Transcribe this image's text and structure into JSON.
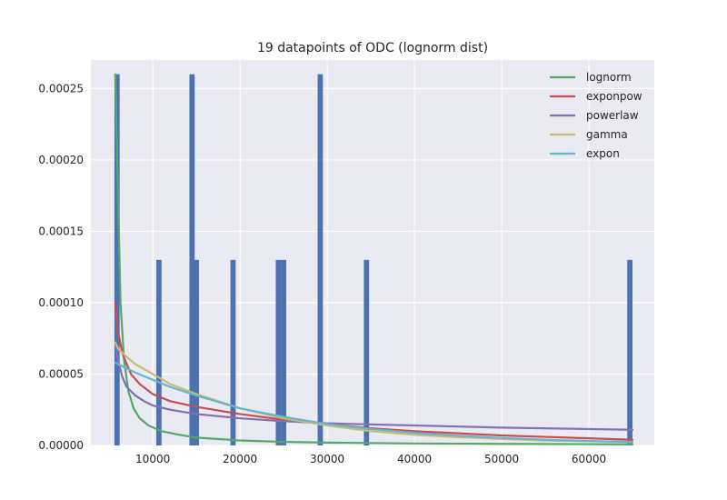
{
  "chart_data": {
    "type": "bar",
    "title": "19 datapoints of ODC (lognorm dist)",
    "xlabel": "",
    "ylabel": "",
    "xlim": [
      2900,
      67500
    ],
    "ylim": [
      0,
      0.00027
    ],
    "x_ticks": [
      {
        "value": 10000,
        "label": "10000"
      },
      {
        "value": 20000,
        "label": "20000"
      },
      {
        "value": 30000,
        "label": "30000"
      },
      {
        "value": 40000,
        "label": "40000"
      },
      {
        "value": 50000,
        "label": "50000"
      },
      {
        "value": 60000,
        "label": "60000"
      }
    ],
    "y_ticks": [
      {
        "value": 0,
        "label": "0.00000"
      },
      {
        "value": 5e-05,
        "label": "0.00005"
      },
      {
        "value": 0.0001,
        "label": "0.00010"
      },
      {
        "value": 0.00015,
        "label": "0.00015"
      },
      {
        "value": 0.0002,
        "label": "0.00020"
      },
      {
        "value": 0.00025,
        "label": "0.00025"
      }
    ],
    "grid": true,
    "legend_position": "top-right",
    "histogram": {
      "color": "#4c72b0",
      "bin_width": 600,
      "bars": [
        {
          "x": 5900,
          "value": 0.00026
        },
        {
          "x": 10700,
          "value": 0.00013
        },
        {
          "x": 14500,
          "value": 0.00026
        },
        {
          "x": 15000,
          "value": 0.00013
        },
        {
          "x": 19200,
          "value": 0.00013
        },
        {
          "x": 24400,
          "value": 0.00013
        },
        {
          "x": 25000,
          "value": 0.00013
        },
        {
          "x": 29200,
          "value": 0.00026
        },
        {
          "x": 34500,
          "value": 0.00013
        },
        {
          "x": 64700,
          "value": 0.00013
        }
      ]
    },
    "series": [
      {
        "name": "lognorm",
        "color": "#55a868",
        "x": [
          5700,
          6000,
          6300,
          6700,
          7200,
          7800,
          8500,
          9500,
          11000,
          13000,
          15000,
          20000,
          25000,
          30000,
          40000,
          50000,
          65000
        ],
        "y": [
          0.00026,
          0.00018,
          0.0001,
          6e-05,
          3.8e-05,
          2.6e-05,
          1.9e-05,
          1.4e-05,
          1e-05,
          7.5e-06,
          5.5e-06,
          3.5e-06,
          2.5e-06,
          2e-06,
          1.4e-06,
          1.1e-06,
          8e-07
        ]
      },
      {
        "name": "exponpow",
        "color": "#c44e52",
        "x": [
          5700,
          6000,
          6500,
          7000,
          7500,
          8500,
          10000,
          12000,
          15000,
          20000,
          25000,
          30000,
          35000,
          40000,
          45000,
          50000,
          55000,
          60000,
          65000
        ],
        "y": [
          0.0001,
          8e-05,
          6.5e-05,
          5.7e-05,
          5e-05,
          4.3e-05,
          3.6e-05,
          3.1e-05,
          2.7e-05,
          2.2e-05,
          1.8e-05,
          1.5e-05,
          1.2e-05,
          1e-05,
          8.5e-06,
          7e-06,
          6e-06,
          5e-06,
          4e-06
        ]
      },
      {
        "name": "powerlaw",
        "color": "#8172b2",
        "x": [
          5700,
          6000,
          6500,
          7000,
          8000,
          9000,
          10000,
          12000,
          15000,
          20000,
          25000,
          30000,
          40000,
          50000,
          65000
        ],
        "y": [
          7.3e-05,
          6e-05,
          4.8e-05,
          4.1e-05,
          3.5e-05,
          3.1e-05,
          2.8e-05,
          2.5e-05,
          2.2e-05,
          1.9e-05,
          1.7e-05,
          1.55e-05,
          1.4e-05,
          1.25e-05,
          1.1e-05
        ]
      },
      {
        "name": "gamma",
        "color": "#ccb974",
        "x": [
          5700,
          6000,
          7000,
          8000,
          10000,
          12000,
          15000,
          20000,
          25000,
          30000,
          35000,
          40000,
          45000,
          50000,
          55000,
          60000,
          65000
        ],
        "y": [
          7.2e-05,
          6.8e-05,
          6.2e-05,
          5.7e-05,
          5e-05,
          4.3e-05,
          3.6e-05,
          2.6e-05,
          1.9e-05,
          1.4e-05,
          1e-05,
          7.5e-06,
          5.8e-06,
          4.5e-06,
          3.5e-06,
          3e-06,
          2.5e-06
        ]
      },
      {
        "name": "expon",
        "color": "#64b5cd",
        "x": [
          5700,
          6000,
          7000,
          8000,
          10000,
          12000,
          15000,
          20000,
          25000,
          30000,
          35000,
          40000,
          45000,
          50000,
          55000,
          60000,
          65000
        ],
        "y": [
          5.8e-05,
          5.7e-05,
          5.4e-05,
          5.1e-05,
          4.6e-05,
          4.1e-05,
          3.5e-05,
          2.6e-05,
          2e-05,
          1.5e-05,
          1.15e-05,
          8.8e-06,
          6.8e-06,
          5.2e-06,
          4e-06,
          3.1e-06,
          2.4e-06
        ]
      }
    ]
  }
}
